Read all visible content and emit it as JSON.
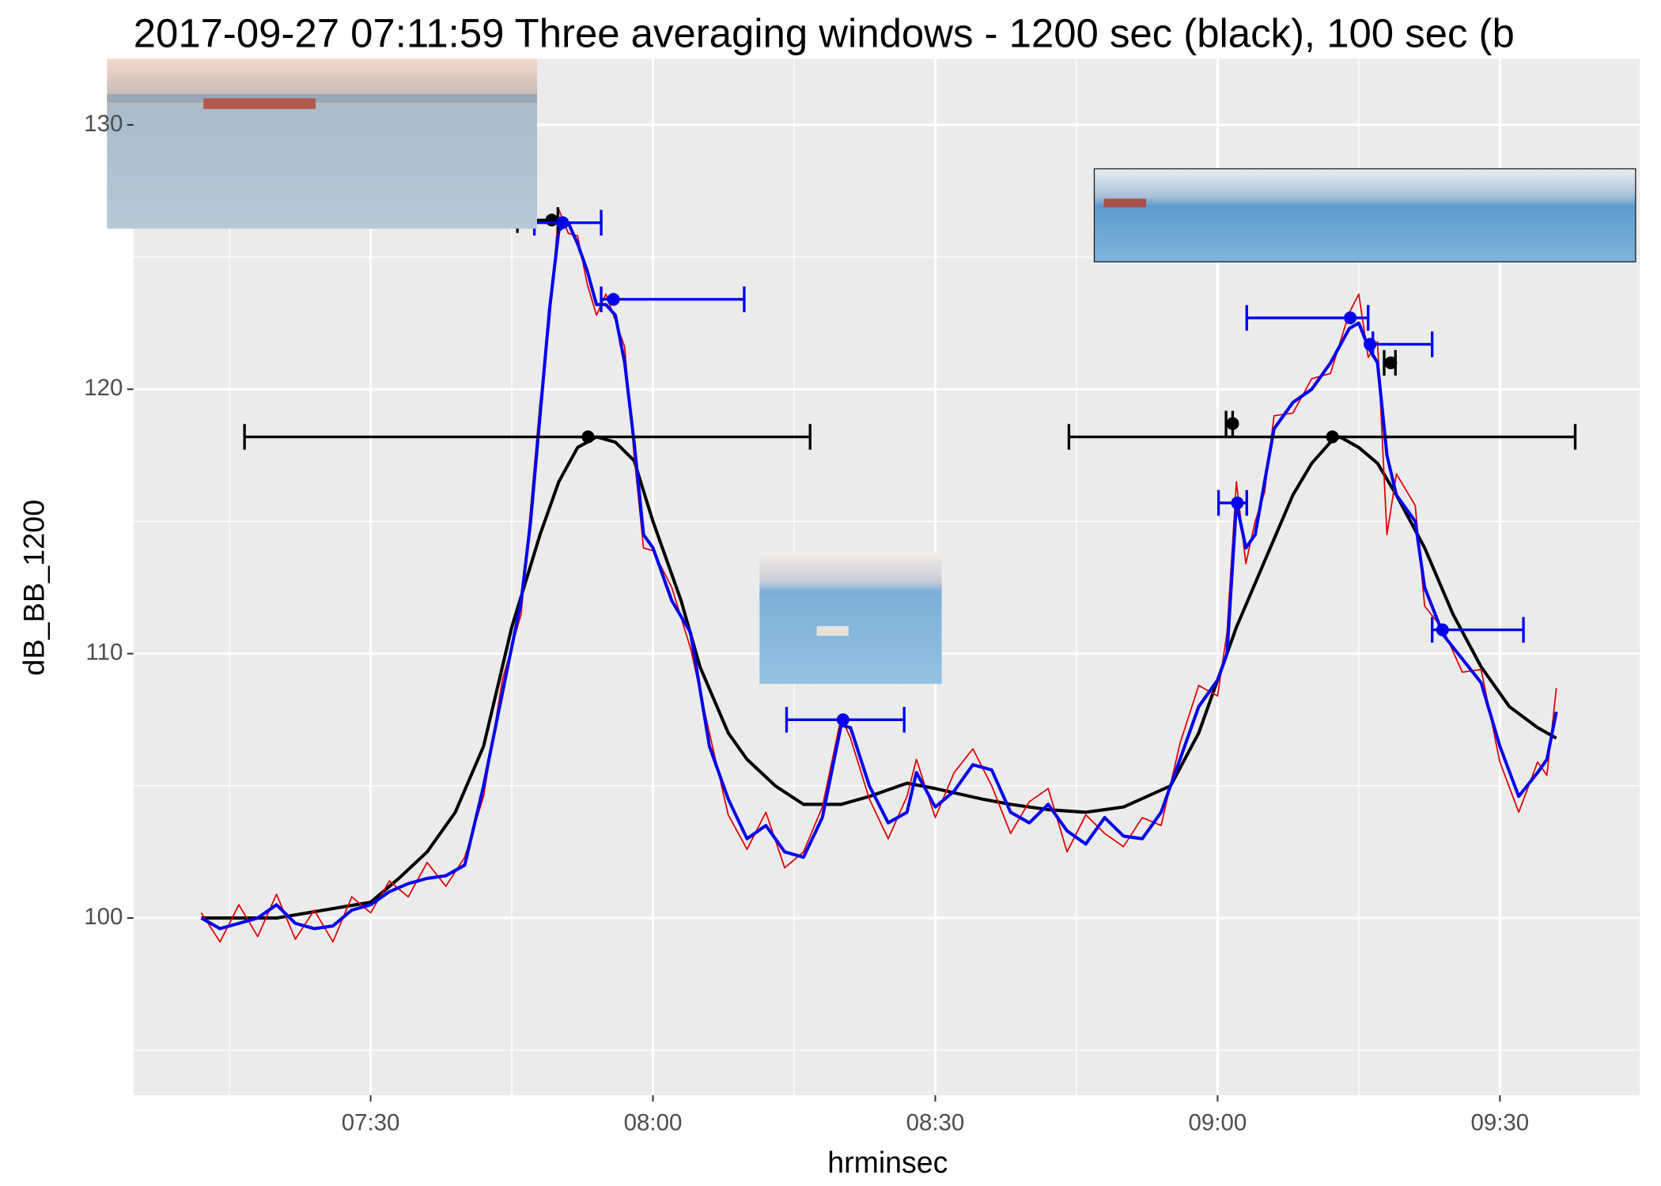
{
  "chart_data": {
    "type": "line",
    "title": "2017-09-27   07:11:59  Three averaging windows - 1200 sec (black), 100 sec (b",
    "x_label": "hrminsec",
    "y_label": "dB_BB_1200",
    "xlim": [
      "07:04:48",
      "09:44:52"
    ],
    "xticks": [
      "07:30",
      "08:00",
      "08:30",
      "09:00",
      "09:30"
    ],
    "minor_xticks": [
      "07:15",
      "07:45",
      "08:15",
      "08:45",
      "09:15"
    ],
    "ylim": [
      93.3,
      132.5
    ],
    "yticks": [
      100,
      110,
      120,
      130
    ],
    "minor_yticks": [
      95,
      105,
      115,
      125
    ],
    "grid": true,
    "series": [
      {
        "color": "#000000",
        "x": [
          "07:12",
          "07:20",
          "07:25",
          "07:30",
          "07:33",
          "07:36",
          "07:39",
          "07:42",
          "07:45",
          "07:48",
          "07:50",
          "07:52",
          "07:54",
          "07:56",
          "07:58",
          "08:00",
          "08:03",
          "08:05",
          "08:08",
          "08:10",
          "08:13",
          "08:16",
          "08:20",
          "08:23",
          "08:27",
          "08:30",
          "08:35",
          "08:38",
          "08:42",
          "08:46",
          "08:50",
          "08:55",
          "08:58",
          "09:00",
          "09:02",
          "09:05",
          "09:08",
          "09:10",
          "09:12",
          "09:13",
          "09:15",
          "09:17",
          "09:19",
          "09:22",
          "09:25",
          "09:28",
          "09:31",
          "09:34",
          "09:36"
        ],
        "values": [
          100,
          100,
          100.3,
          100.6,
          101.5,
          102.5,
          104,
          106.5,
          111,
          114.5,
          116.5,
          117.8,
          118.2,
          118,
          117.3,
          115,
          112,
          109.5,
          107,
          106,
          105,
          104.3,
          104.3,
          104.6,
          105.1,
          104.9,
          104.5,
          104.3,
          104.1,
          104,
          104.2,
          105,
          107,
          109,
          111,
          113.5,
          116,
          117.2,
          118,
          118.2,
          117.8,
          117.2,
          116,
          114,
          111.5,
          109.5,
          108,
          107.2,
          106.8
        ]
      },
      {
        "color": "#e00000",
        "x": [
          "07:12",
          "07:14",
          "07:16",
          "07:18",
          "07:20",
          "07:22",
          "07:24",
          "07:26",
          "07:28",
          "07:30",
          "07:32",
          "07:34",
          "07:36",
          "07:38",
          "07:40",
          "07:42",
          "07:44",
          "07:46",
          "07:47",
          "07:48",
          "07:49",
          "07:50",
          "07:51",
          "07:52",
          "07:53",
          "07:54",
          "07:55",
          "07:56",
          "07:57",
          "07:58",
          "07:59",
          "08:00",
          "08:02",
          "08:04",
          "08:06",
          "08:08",
          "08:10",
          "08:12",
          "08:14",
          "08:16",
          "08:18",
          "08:20",
          "08:21",
          "08:23",
          "08:25",
          "08:27",
          "08:28",
          "08:30",
          "08:32",
          "08:34",
          "08:36",
          "08:38",
          "08:40",
          "08:42",
          "08:44",
          "08:46",
          "08:48",
          "08:50",
          "08:52",
          "08:54",
          "08:56",
          "08:58",
          "09:00",
          "09:01",
          "09:02",
          "09:03",
          "09:04",
          "09:05",
          "09:06",
          "09:08",
          "09:10",
          "09:12",
          "09:14",
          "09:15",
          "09:16",
          "09:17",
          "09:18",
          "09:19",
          "09:21",
          "09:22",
          "09:24",
          "09:26",
          "09:28",
          "09:30",
          "09:32",
          "09:34",
          "09:35",
          "09:36"
        ],
        "values": [
          100.2,
          99.1,
          100.5,
          99.3,
          100.9,
          99.2,
          100.3,
          99.1,
          100.8,
          100.2,
          101.4,
          100.8,
          102.1,
          101.2,
          102.3,
          104.6,
          109,
          111.5,
          115.5,
          119.5,
          122.5,
          126.8,
          125.9,
          125.8,
          124,
          122.8,
          123.6,
          122.6,
          121.6,
          117.5,
          114,
          113.9,
          112.5,
          110.2,
          107,
          103.9,
          102.6,
          104,
          101.9,
          102.5,
          104.2,
          107.6,
          106.8,
          104.5,
          103,
          104.6,
          106,
          103.8,
          105.5,
          106.4,
          105,
          103.2,
          104.4,
          104.9,
          102.5,
          103.9,
          103.2,
          102.7,
          103.8,
          103.5,
          106.6,
          108.8,
          108.4,
          110.8,
          116.5,
          113.4,
          115,
          116.1,
          119,
          119.1,
          120.4,
          120.6,
          122.9,
          123.6,
          121.2,
          121.8,
          114.5,
          116.8,
          115.6,
          111.8,
          110.9,
          109.3,
          109.4,
          105.9,
          104,
          105.9,
          105.4,
          108.7
        ]
      },
      {
        "color": "#0000ee",
        "x": [
          "07:12",
          "07:14",
          "07:16",
          "07:18",
          "07:20",
          "07:22",
          "07:24",
          "07:26",
          "07:28",
          "07:30",
          "07:32",
          "07:34",
          "07:36",
          "07:38",
          "07:40",
          "07:42",
          "07:44",
          "07:46",
          "07:47",
          "07:48",
          "07:49",
          "07:50",
          "07:51",
          "07:52",
          "07:53",
          "07:54",
          "07:55",
          "07:56",
          "07:57",
          "07:58",
          "07:59",
          "08:00",
          "08:02",
          "08:04",
          "08:06",
          "08:08",
          "08:10",
          "08:12",
          "08:14",
          "08:16",
          "08:18",
          "08:20",
          "08:21",
          "08:23",
          "08:25",
          "08:27",
          "08:28",
          "08:30",
          "08:32",
          "08:34",
          "08:36",
          "08:38",
          "08:40",
          "08:42",
          "08:44",
          "08:46",
          "08:48",
          "08:50",
          "08:52",
          "08:54",
          "08:56",
          "08:58",
          "09:00",
          "09:01",
          "09:02",
          "09:03",
          "09:04",
          "09:05",
          "09:06",
          "09:08",
          "09:10",
          "09:12",
          "09:14",
          "09:15",
          "09:16",
          "09:17",
          "09:18",
          "09:19",
          "09:21",
          "09:22",
          "09:24",
          "09:26",
          "09:28",
          "09:30",
          "09:32",
          "09:34",
          "09:35",
          "09:36"
        ],
        "values": [
          100,
          99.6,
          99.8,
          100,
          100.5,
          99.8,
          99.6,
          99.7,
          100.3,
          100.5,
          101,
          101.3,
          101.5,
          101.6,
          102,
          105,
          108.5,
          112,
          115,
          119,
          123,
          126,
          126.3,
          125.5,
          124.5,
          123.2,
          123.2,
          122.8,
          121,
          118,
          114.5,
          114,
          112,
          110.8,
          106.5,
          104.5,
          103,
          103.5,
          102.5,
          102.3,
          103.8,
          107.3,
          107.2,
          105,
          103.6,
          104,
          105.5,
          104.2,
          104.8,
          105.8,
          105.6,
          104,
          103.6,
          104.3,
          103.3,
          102.8,
          103.8,
          103.1,
          103,
          104,
          106,
          108,
          109,
          110,
          115.7,
          114,
          114.5,
          116.5,
          118.5,
          119.5,
          120,
          121,
          122.3,
          122.5,
          121.6,
          121,
          117.5,
          116,
          115,
          112.5,
          110.7,
          109.8,
          108.9,
          106.5,
          104.6,
          105.5,
          106,
          107.8
        ]
      }
    ],
    "points": [
      {
        "color": "#000000",
        "x": "07:53:06",
        "y": 118.2,
        "xmin": "07:16:36",
        "xmax": "08:16:42"
      },
      {
        "color": "#000000",
        "x": "09:12:12",
        "y": 118.2,
        "xmin": "08:44:12",
        "xmax": "09:38:00"
      },
      {
        "color": "#000000",
        "x": "07:49:15",
        "y": 126.4,
        "xmin": "07:45:36",
        "xmax": "07:49:54"
      },
      {
        "color": "#000000",
        "x": "09:01:36",
        "y": 118.7,
        "xmin": "09:00:54",
        "xmax": "09:01:36"
      },
      {
        "color": "#000000",
        "x": "09:18:24",
        "y": 121,
        "xmin": "09:17:42",
        "xmax": "09:18:54"
      },
      {
        "color": "#0000ee",
        "x": "07:50:24",
        "y": 126.3,
        "xmin": "07:47:24",
        "xmax": "07:54:30"
      },
      {
        "color": "#0000ee",
        "x": "07:55:48",
        "y": 123.4,
        "xmin": "07:54:30",
        "xmax": "08:09:42"
      },
      {
        "color": "#0000ee",
        "x": "08:20:12",
        "y": 107.5,
        "xmin": "08:14:12",
        "xmax": "08:26:42"
      },
      {
        "color": "#0000ee",
        "x": "09:02:06",
        "y": 115.7,
        "xmin": "09:00:06",
        "xmax": "09:03:06"
      },
      {
        "color": "#0000ee",
        "x": "09:14:06",
        "y": 122.7,
        "xmin": "09:03:06",
        "xmax": "09:16:00"
      },
      {
        "color": "#0000ee",
        "x": "09:16:12",
        "y": 121.7,
        "xmin": "09:16:30",
        "xmax": "09:22:48"
      },
      {
        "color": "#0000ee",
        "x": "09:23:54",
        "y": 110.9,
        "xmin": "09:22:48",
        "xmax": "09:32:30"
      }
    ]
  }
}
